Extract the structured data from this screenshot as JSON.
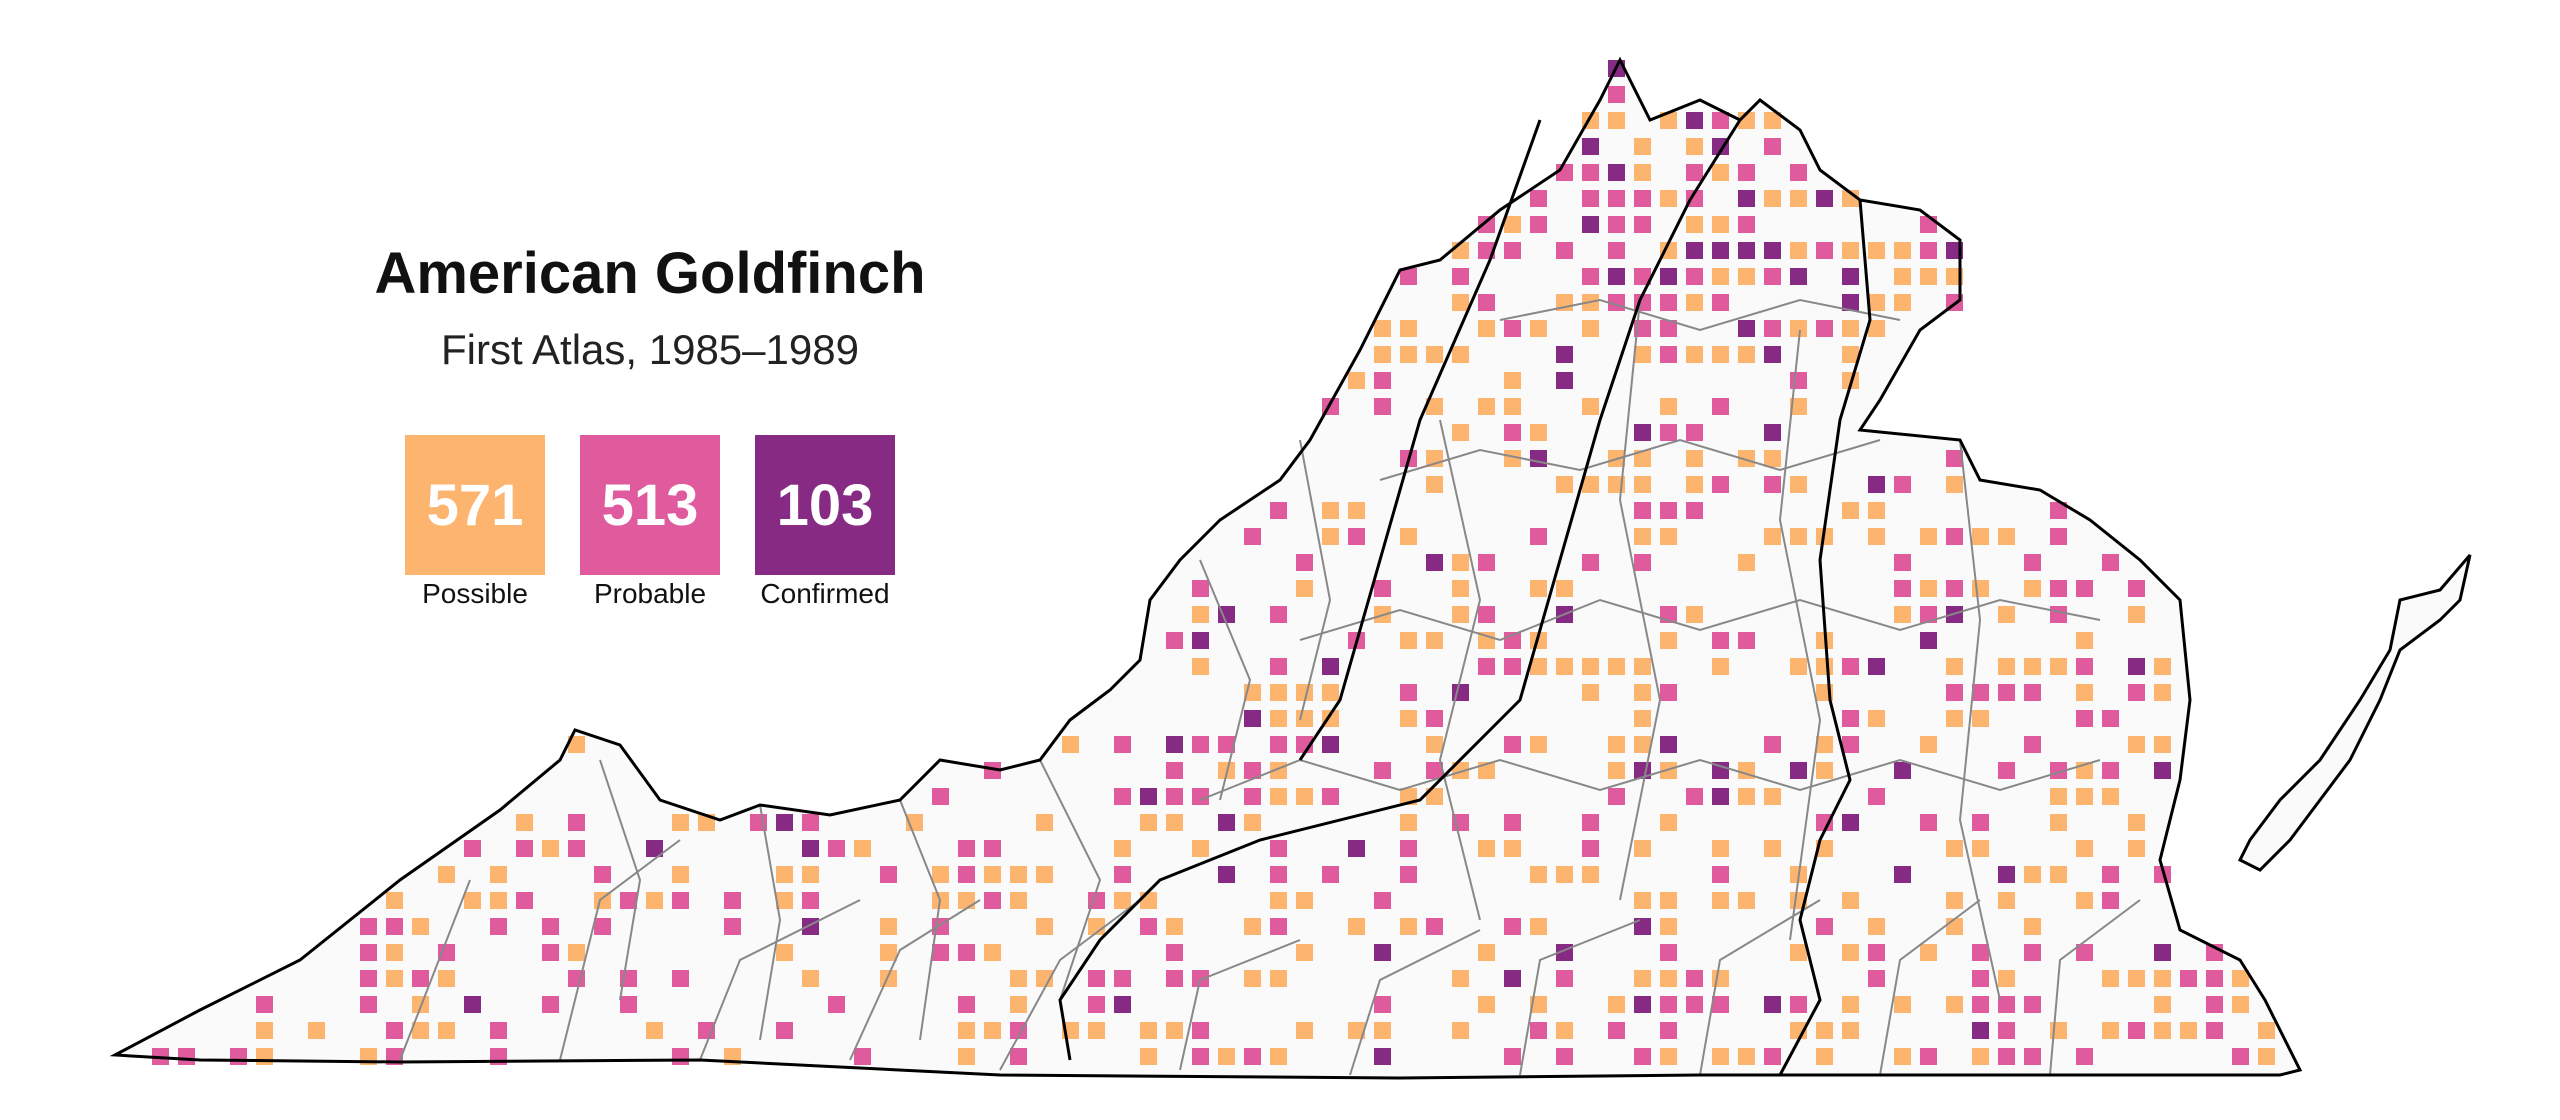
{
  "title": "American Goldfinch",
  "subtitle": "First Atlas, 1985–1989",
  "legend": {
    "possible": {
      "count": "571",
      "label": "Possible",
      "color": "#FDB46E"
    },
    "probable": {
      "count": "513",
      "label": "Probable",
      "color": "#E05A9E"
    },
    "confirmed": {
      "count": "103",
      "label": "Confirmed",
      "color": "#862A84"
    }
  },
  "map": {
    "region": "Virginia",
    "background_fill": "#FAFAFA",
    "outline_color": "#000000",
    "boundary_color": "#888888"
  }
}
